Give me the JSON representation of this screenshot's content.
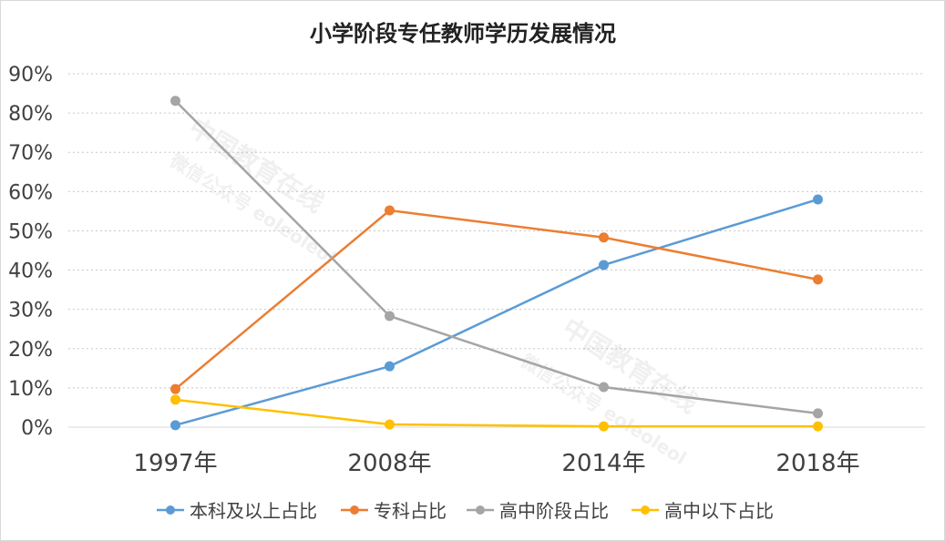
{
  "chart_data": {
    "type": "line",
    "title": "小学阶段专任教师学历发展情况",
    "categories": [
      "1997年",
      "2008年",
      "2014年",
      "2018年"
    ],
    "ylim": [
      0,
      90
    ],
    "yticks": [
      "0%",
      "10%",
      "20%",
      "30%",
      "40%",
      "50%",
      "60%",
      "70%",
      "80%",
      "90%"
    ],
    "grid": true,
    "legend_position": "bottom",
    "series": [
      {
        "name": "本科及以上占比",
        "color": "#5b9bd5",
        "values": [
          0.5,
          15.5,
          41.3,
          58.0
        ]
      },
      {
        "name": "专科占比",
        "color": "#ed7d31",
        "values": [
          9.7,
          55.2,
          48.3,
          37.6
        ]
      },
      {
        "name": "高中阶段占比",
        "color": "#a5a5a5",
        "values": [
          83.1,
          28.3,
          10.2,
          3.5
        ]
      },
      {
        "name": "高中以下占比",
        "color": "#ffc000",
        "values": [
          7.0,
          0.7,
          0.2,
          0.2
        ]
      }
    ]
  },
  "watermark": {
    "line1": "中国教育在线",
    "line2": "微信公众号 eoleoleol"
  }
}
